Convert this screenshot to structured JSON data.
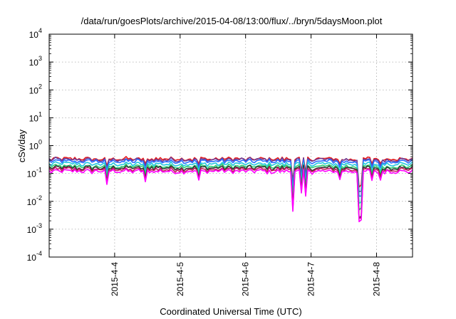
{
  "chart_data": {
    "type": "line",
    "title": "/data/run/goesPlots/archive/2015-04-08/13:00/flux/../bryn/5daysMoon.plot",
    "xlabel": "Coordinated Universal Time (UTC)",
    "ylabel": "cSv/day",
    "yscale": "log",
    "ylim": [
      0.0001,
      10000
    ],
    "xlim_days": [
      3.0,
      8.55
    ],
    "grid": true,
    "y_ticks": [
      {
        "base": "10",
        "exp": "-4"
      },
      {
        "base": "10",
        "exp": "-3"
      },
      {
        "base": "10",
        "exp": "-2"
      },
      {
        "base": "10",
        "exp": "-1"
      },
      {
        "base": "10",
        "exp": "0"
      },
      {
        "base": "10",
        "exp": "1"
      },
      {
        "base": "10",
        "exp": "2"
      },
      {
        "base": "10",
        "exp": "3"
      },
      {
        "base": "10",
        "exp": "4"
      }
    ],
    "x_ticks": [
      {
        "label": "2015-4-4",
        "day": 4
      },
      {
        "label": "2015-4-5",
        "day": 5
      },
      {
        "label": "2015-4-6",
        "day": 6
      },
      {
        "label": "2015-4-7",
        "day": 7
      },
      {
        "label": "2015-4-8",
        "day": 8
      }
    ],
    "dips": [
      {
        "day": 3.88,
        "factor": 0.3
      },
      {
        "day": 4.48,
        "factor": 0.4
      },
      {
        "day": 5.28,
        "factor": 0.45
      },
      {
        "day": 6.72,
        "factor": 0.045
      },
      {
        "day": 6.84,
        "factor": 0.15
      },
      {
        "day": 6.92,
        "factor": 0.12
      },
      {
        "day": 7.45,
        "factor": 0.45
      },
      {
        "day": 7.75,
        "factor": 0.016
      },
      {
        "day": 7.93,
        "factor": 0.5
      },
      {
        "day": 8.05,
        "factor": 0.45
      }
    ],
    "series": [
      {
        "color": "#e41a1c",
        "base": 0.33
      },
      {
        "color": "#6a3d9a",
        "base": 0.31
      },
      {
        "color": "#2b6cff",
        "base": 0.27
      },
      {
        "color": "#22c7e0",
        "base": 0.22
      },
      {
        "color": "#2ecc71",
        "base": 0.18
      },
      {
        "color": "#333333",
        "base": 0.16
      },
      {
        "color": "#c2185b",
        "base": 0.14
      },
      {
        "color": "#ff00ff",
        "base": 0.12
      }
    ]
  }
}
